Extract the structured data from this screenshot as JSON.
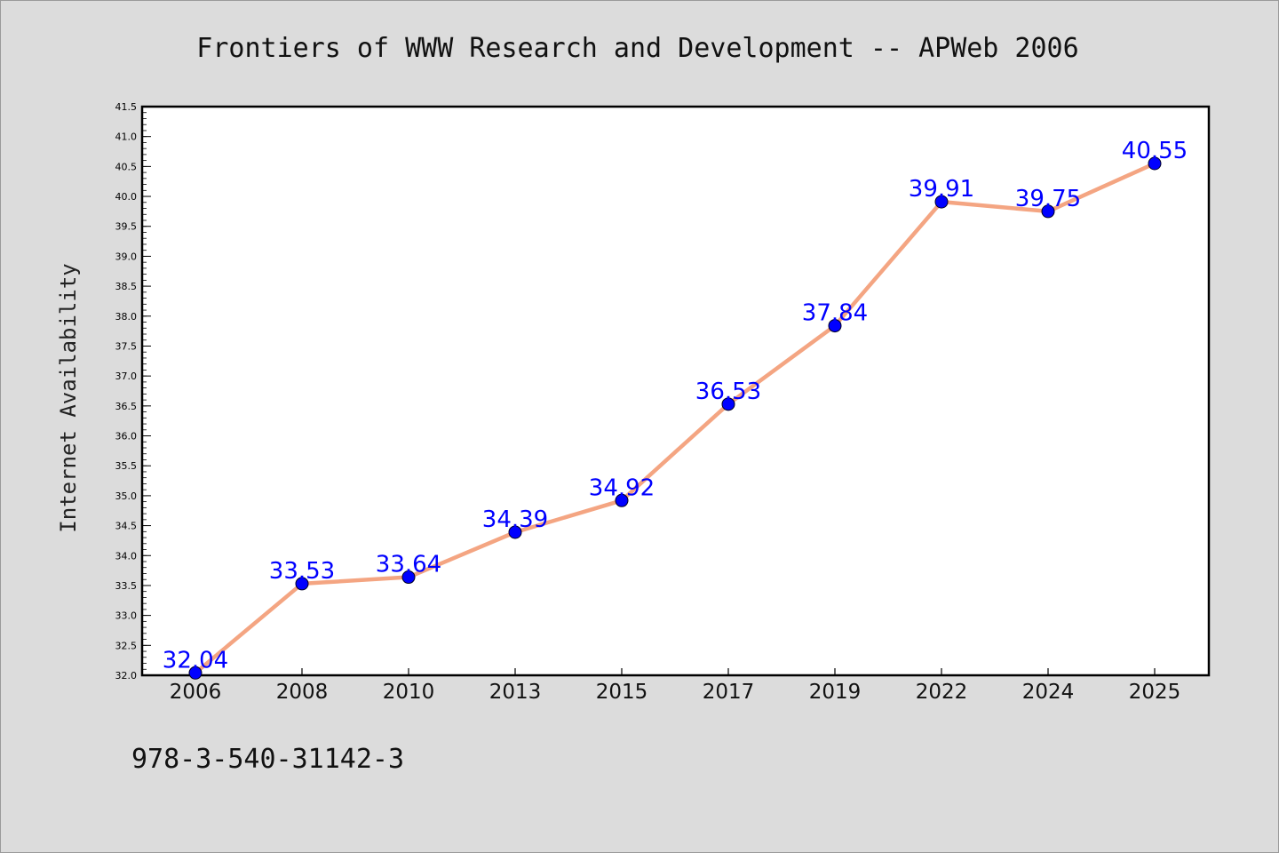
{
  "chart_data": {
    "type": "line",
    "title": "Frontiers of WWW Research and Development -- APWeb 2006",
    "ylabel": "Internet Availability",
    "xlabel": "",
    "categories": [
      "2006",
      "2008",
      "2010",
      "2013",
      "2015",
      "2017",
      "2019",
      "2022",
      "2024",
      "2025"
    ],
    "values": [
      32.04,
      33.53,
      33.64,
      34.39,
      34.92,
      36.53,
      37.84,
      39.91,
      39.75,
      40.55
    ],
    "data_labels": [
      "32.04",
      "33.53",
      "33.64",
      "34.39",
      "34.92",
      "36.53",
      "37.84",
      "39.91",
      "39.75",
      "40.55"
    ],
    "ylim": [
      32.0,
      41.5
    ],
    "yticks": [
      "32.0",
      "32.5",
      "33.0",
      "33.5",
      "34.0",
      "34.5",
      "35.0",
      "35.5",
      "36.0",
      "36.5",
      "37.0",
      "37.5",
      "38.0",
      "38.5",
      "39.0",
      "39.5",
      "40.0",
      "40.5",
      "41.0",
      "41.5"
    ],
    "grid": false,
    "line_color": "#f4a582",
    "marker_color": "#0000ff",
    "label_color": "#0000ff"
  },
  "footer": {
    "isbn": "978-3-540-31142-3"
  }
}
